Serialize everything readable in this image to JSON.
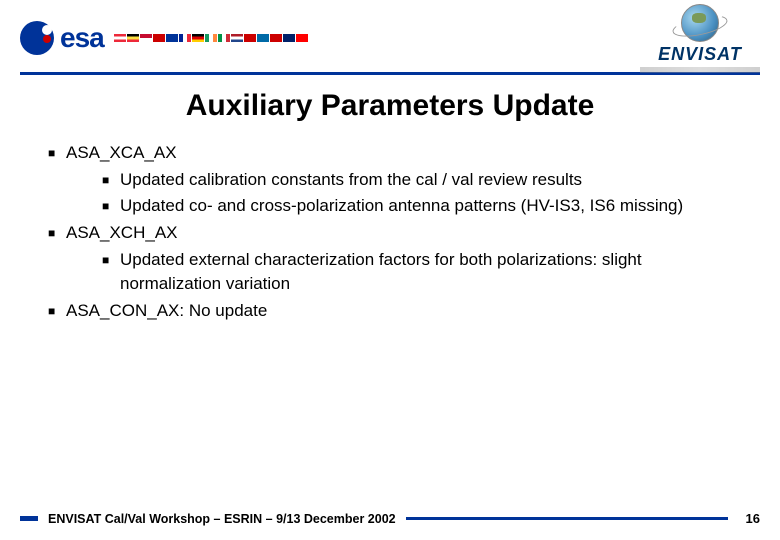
{
  "header": {
    "logo_left_text": "esa",
    "logo_right_text": "ENVISAT"
  },
  "title": "Auxiliary Parameters Update",
  "body": {
    "items": [
      {
        "label": "ASA_XCA_AX",
        "subitems": [
          "Updated calibration constants from the cal / val review results",
          "Updated co- and cross-polarization antenna patterns (HV-IS3, IS6 missing)"
        ]
      },
      {
        "label": "ASA_XCH_AX",
        "subitems": [
          "Updated external characterization factors for both polarizations: slight normalization variation"
        ]
      },
      {
        "label": "ASA_CON_AX: No update",
        "subitems": []
      }
    ]
  },
  "footer": {
    "text": "ENVISAT Cal/Val Workshop – ESRIN – 9/13 December 2002",
    "page": "16"
  },
  "colors": {
    "rule": "#003399",
    "text": "#000000",
    "background": "#ffffff"
  },
  "typography": {
    "title_fontsize": 30,
    "body_fontsize": 17,
    "footer_fontsize": 12.5,
    "font_family": "Comic Sans MS"
  }
}
